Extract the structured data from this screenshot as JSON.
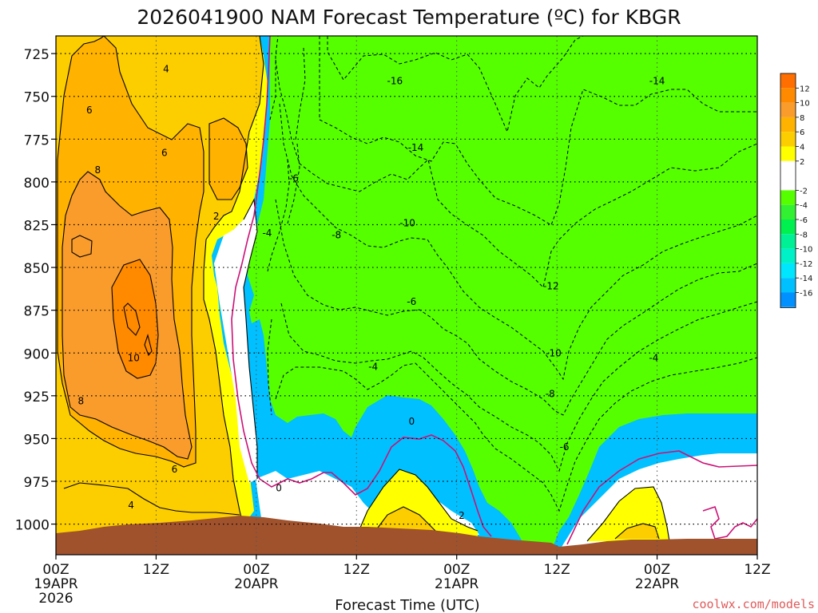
{
  "chart_data": {
    "type": "heatmap",
    "title": "2026041900 NAM Forecast Temperature (ºC) for KBGR",
    "xlabel": "Forecast Time (UTC)",
    "ylabel": "",
    "watermark": "coolwx.com/models",
    "y_scale": "pressure (hPa), decreasing upward",
    "ylim": [
      1015,
      712
    ],
    "xlim": [
      0,
      84
    ],
    "x_unit": "forecast hours",
    "y_ticks": [
      725,
      750,
      775,
      800,
      825,
      850,
      875,
      900,
      925,
      950,
      975,
      1000
    ],
    "x_ticks": [
      {
        "h": 0,
        "label": "00Z",
        "date": "19APR",
        "year": "2026"
      },
      {
        "h": 12,
        "label": "12Z"
      },
      {
        "h": 24,
        "label": "00Z",
        "date": "20APR"
      },
      {
        "h": 36,
        "label": "12Z"
      },
      {
        "h": 48,
        "label": "00Z",
        "date": "21APR"
      },
      {
        "h": 60,
        "label": "12Z"
      },
      {
        "h": 72,
        "label": "00Z",
        "date": "22APR"
      },
      {
        "h": 84,
        "label": "12Z"
      }
    ],
    "colorbar": {
      "labels": [
        "12",
        "10",
        "8",
        "6",
        "4",
        "2",
        "-2",
        "-4",
        "-6",
        "-8",
        "-10",
        "-12",
        "-14",
        "-16"
      ],
      "bins": [
        {
          "lo": 12,
          "hi": 14,
          "color": "#ff6e00"
        },
        {
          "lo": 10,
          "hi": 12,
          "color": "#ff8a00"
        },
        {
          "lo": 8,
          "hi": 10,
          "color": "#f99c2c"
        },
        {
          "lo": 6,
          "hi": 8,
          "color": "#ffb300"
        },
        {
          "lo": 4,
          "hi": 6,
          "color": "#fcce00"
        },
        {
          "lo": 2,
          "hi": 4,
          "color": "#ffff00"
        },
        {
          "lo": -2,
          "hi": 2,
          "color": "#ffffff"
        },
        {
          "lo": -4,
          "hi": -2,
          "color": "#55ff00"
        },
        {
          "lo": -6,
          "hi": -4,
          "color": "#32f032"
        },
        {
          "lo": -8,
          "hi": -6,
          "color": "#00f050"
        },
        {
          "lo": -10,
          "hi": -8,
          "color": "#00f096"
        },
        {
          "lo": -12,
          "hi": -10,
          "color": "#00f0c8"
        },
        {
          "lo": -14,
          "hi": -12,
          "color": "#00e6ff"
        },
        {
          "lo": -16,
          "hi": -14,
          "color": "#00c0ff"
        },
        {
          "lo": -18,
          "hi": -16,
          "color": "#0090ff"
        }
      ]
    },
    "contour_labels": [
      {
        "text": "4",
        "h": 13.2,
        "p": 734
      },
      {
        "text": "6",
        "h": 4.0,
        "p": 758
      },
      {
        "text": "6",
        "h": 13.0,
        "p": 783
      },
      {
        "text": "8",
        "h": 5.0,
        "p": 793
      },
      {
        "text": "2",
        "h": 19.2,
        "p": 820
      },
      {
        "text": "10",
        "h": 9.3,
        "p": 903
      },
      {
        "text": "8",
        "h": 3.0,
        "p": 928
      },
      {
        "text": "6",
        "h": 14.2,
        "p": 968
      },
      {
        "text": "4",
        "h": 9.0,
        "p": 989
      },
      {
        "text": "0",
        "h": 26.7,
        "p": 979
      },
      {
        "text": "-6",
        "h": 28.5,
        "p": 798
      },
      {
        "text": "-4",
        "h": 25.3,
        "p": 830
      },
      {
        "text": "-8",
        "h": 33.6,
        "p": 831
      },
      {
        "text": "-16",
        "h": 40.6,
        "p": 741
      },
      {
        "text": "-14",
        "h": 43.1,
        "p": 780
      },
      {
        "text": "-10",
        "h": 42.1,
        "p": 824
      },
      {
        "text": "-6",
        "h": 42.6,
        "p": 870
      },
      {
        "text": "-4",
        "h": 38.0,
        "p": 908
      },
      {
        "text": "0",
        "h": 42.6,
        "p": 940
      },
      {
        "text": "2",
        "h": 48.6,
        "p": 995
      },
      {
        "text": "-12",
        "h": 59.3,
        "p": 861
      },
      {
        "text": "-10",
        "h": 59.6,
        "p": 900
      },
      {
        "text": "-8",
        "h": 59.2,
        "p": 924
      },
      {
        "text": "-6",
        "h": 60.9,
        "p": 955
      },
      {
        "text": "-14",
        "h": 72.0,
        "p": 741
      },
      {
        "text": "-4",
        "h": 71.6,
        "p": 903
      }
    ]
  }
}
